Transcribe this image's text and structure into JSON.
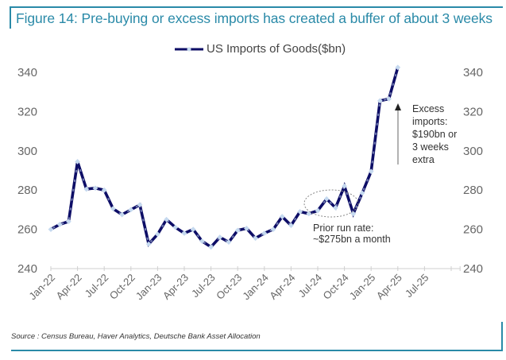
{
  "figure": {
    "title": "Figure 14: Pre-buying or excess imports has created a buffer of about 3 weeks",
    "source": "Source : Census Bureau, Haver Analytics, Deutsche Bank Asset Allocation",
    "colors": {
      "accent": "#2a8aa8",
      "line": "#0d0d66",
      "marker": "#c5d9ef"
    }
  },
  "chart_data": {
    "type": "line",
    "title": "Figure 14: Pre-buying or excess imports has created a buffer of about 3 weeks",
    "xlabel": "",
    "ylabel": "",
    "ylim": [
      240,
      340
    ],
    "yticks": [
      240,
      260,
      280,
      300,
      320,
      340
    ],
    "y_axis_sides": [
      "left",
      "right"
    ],
    "grid": false,
    "legend": {
      "position": "top-center",
      "entries": [
        "US Imports of Goods($bn)"
      ]
    },
    "x_tick_labels": [
      "Jan-22",
      "Apr-22",
      "Jul-22",
      "Oct-22",
      "Jan-23",
      "Apr-23",
      "Jul-23",
      "Oct-23",
      "Jan-24",
      "Apr-24",
      "Jul-24",
      "Oct-24",
      "Jan-25",
      "Apr-25",
      "Jul-25"
    ],
    "x_axis_months": 46,
    "x": [
      "Jan-22",
      "Feb-22",
      "Mar-22",
      "Apr-22",
      "May-22",
      "Jun-22",
      "Jul-22",
      "Aug-22",
      "Sep-22",
      "Oct-22",
      "Nov-22",
      "Dec-22",
      "Jan-23",
      "Feb-23",
      "Mar-23",
      "Apr-23",
      "May-23",
      "Jun-23",
      "Jul-23",
      "Aug-23",
      "Sep-23",
      "Oct-23",
      "Nov-23",
      "Dec-23",
      "Jan-24",
      "Feb-24",
      "Mar-24",
      "Apr-24",
      "May-24",
      "Jun-24",
      "Jul-24",
      "Aug-24",
      "Sep-24",
      "Oct-24",
      "Nov-24",
      "Dec-24",
      "Jan-25",
      "Feb-25",
      "Mar-25",
      "Apr-25"
    ],
    "series": [
      {
        "name": "US Imports of Goods($bn)",
        "values": [
          260,
          262.5,
          264,
          294.5,
          280.5,
          281,
          280,
          270.5,
          267.5,
          270,
          272.5,
          252.5,
          257.5,
          265,
          261,
          258,
          260,
          254,
          251,
          256,
          253.5,
          259.5,
          260.5,
          255.5,
          258,
          260,
          266.5,
          262,
          269,
          268,
          269.5,
          275.5,
          271,
          282,
          268,
          278.5,
          289.5,
          325.5,
          326.5,
          342.5
        ]
      }
    ],
    "annotations": [
      {
        "text": [
          "Prior run rate:",
          "~$275bn a month"
        ],
        "target": "Jul-24 to Nov-24 (ellipse)"
      },
      {
        "text": [
          "Excess",
          "imports:",
          "$190bn or",
          "3 weeks",
          "extra"
        ],
        "arrow": "up"
      }
    ]
  }
}
